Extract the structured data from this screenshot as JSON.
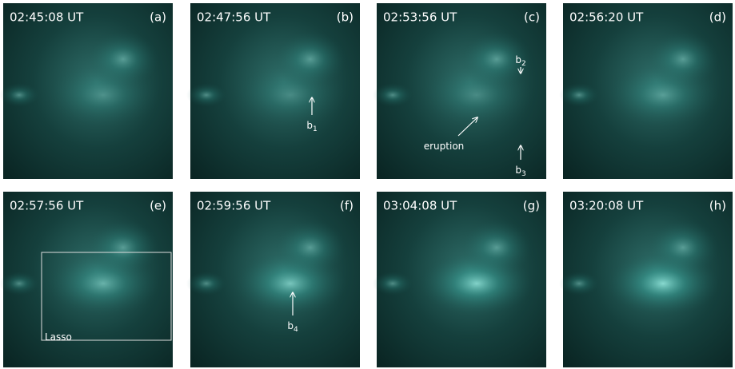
{
  "panels": [
    {
      "time": "02:45:08 UT",
      "label": "(a)"
    },
    {
      "time": "02:47:56 UT",
      "label": "(b)",
      "annotations": [
        {
          "text": "b",
          "sub": "1"
        }
      ]
    },
    {
      "time": "02:53:56 UT",
      "label": "(c)",
      "annotations": [
        {
          "text": "b",
          "sub": "2"
        },
        {
          "text": "eruption"
        },
        {
          "text": "b",
          "sub": "3"
        }
      ]
    },
    {
      "time": "02:56:20 UT",
      "label": "(d)"
    },
    {
      "time": "02:57:56 UT",
      "label": "(e)",
      "annotations": [
        {
          "text": "Lasso"
        }
      ]
    },
    {
      "time": "02:59:56 UT",
      "label": "(f)",
      "annotations": [
        {
          "text": "b",
          "sub": "4"
        }
      ]
    },
    {
      "time": "03:04:08 UT",
      "label": "(g)"
    },
    {
      "time": "03:20:08 UT",
      "label": "(h)"
    }
  ]
}
